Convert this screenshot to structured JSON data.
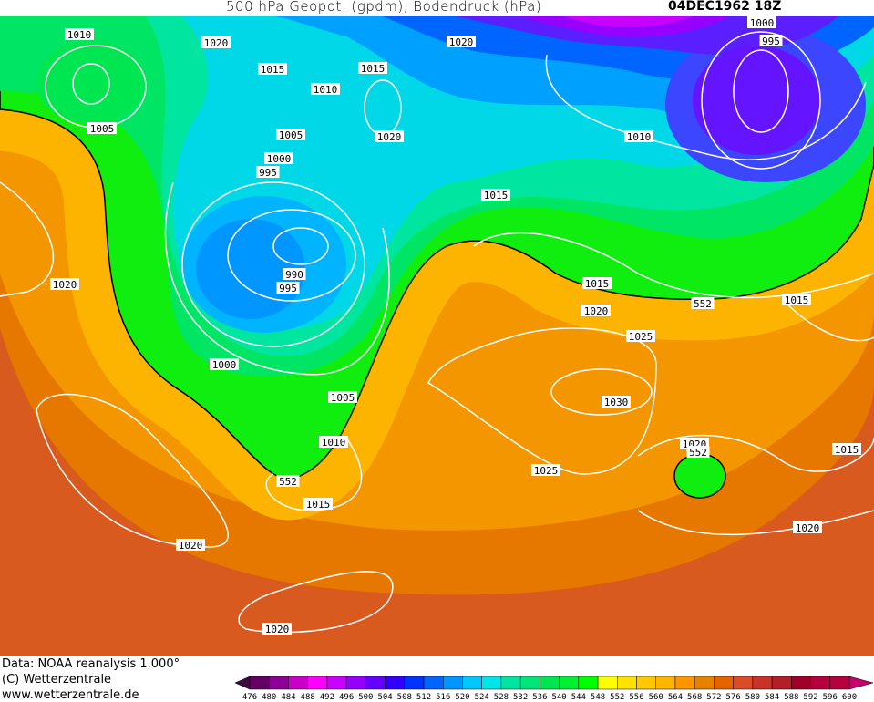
{
  "header": {
    "title": "500 hPa Geopot. (gpdm), Bodendruck (hPa)",
    "date": "04DEC1962 18Z"
  },
  "footer": {
    "source": "Data: NOAA reanalysis 1.000°",
    "copyright": "(C) Wetterzentrale",
    "website": "www.wetterzentrale.de"
  },
  "map": {
    "fields": [
      "500 hPa geopotential (gpdm) shaded",
      "surface pressure (hPa) white isobars"
    ],
    "highlighted_contour": "552",
    "isobar_labels": [
      "1010",
      "1020",
      "1015",
      "1015",
      "1020",
      "1010",
      "1005",
      "1005",
      "1020",
      "1000",
      "995",
      "1010",
      "1000",
      "995",
      "1015",
      "1020",
      "990",
      "995",
      "1015",
      "552",
      "1015",
      "1020",
      "1025",
      "1000",
      "1005",
      "1030",
      "1010",
      "1020",
      "552",
      "1015",
      "552",
      "1025",
      "1015",
      "1020",
      "1020",
      "1020"
    ]
  },
  "colorbar": {
    "labels": [
      "476",
      "480",
      "484",
      "488",
      "492",
      "496",
      "500",
      "504",
      "508",
      "512",
      "516",
      "520",
      "524",
      "528",
      "532",
      "536",
      "540",
      "544",
      "548",
      "552",
      "556",
      "560",
      "564",
      "568",
      "572",
      "576",
      "580",
      "584",
      "588",
      "592",
      "596",
      "600"
    ],
    "low_arrow_color": "#3c0a3c",
    "high_arrow_color": "#c8006e",
    "colors": [
      "#640064",
      "#8c0096",
      "#c800c8",
      "#ff00ff",
      "#c800ff",
      "#9600ff",
      "#6400ff",
      "#3200ff",
      "#0032ff",
      "#0064ff",
      "#0096ff",
      "#00c8ff",
      "#00e6e6",
      "#00e6a0",
      "#00e678",
      "#00e650",
      "#00f032",
      "#00ff00",
      "#ffff00",
      "#ffe100",
      "#ffc800",
      "#ffb400",
      "#ff9600",
      "#e68200",
      "#e66400",
      "#dc4b28",
      "#c83228",
      "#b41e28",
      "#a00028",
      "#b4003c"
    ]
  }
}
